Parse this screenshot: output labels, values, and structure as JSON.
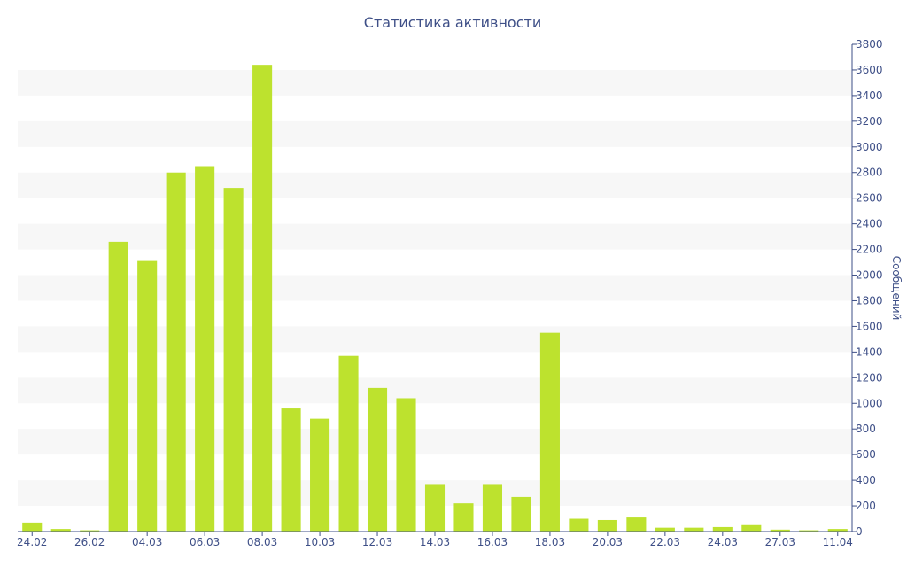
{
  "chart_data": {
    "type": "bar",
    "title": "Статистика активности",
    "ylabel": "Сообщений",
    "xlabel": "",
    "ylim": [
      0,
      3800
    ],
    "y_ticks": [
      0,
      200,
      400,
      600,
      800,
      1000,
      1200,
      1400,
      1600,
      1800,
      2000,
      2200,
      2400,
      2600,
      2800,
      3000,
      3200,
      3400,
      3600,
      3800
    ],
    "x_tick_labels": [
      "24.02",
      "26.02",
      "04.03",
      "06.03",
      "08.03",
      "10.03",
      "12.03",
      "14.03",
      "16.03",
      "18.03",
      "20.03",
      "22.03",
      "24.03",
      "27.03",
      "11.04"
    ],
    "x_tick_positions": [
      0,
      2,
      4,
      6,
      8,
      10,
      12,
      14,
      16,
      18,
      20,
      22,
      24,
      26,
      28
    ],
    "y_axis_position": "right",
    "grid": "alternating horizontal bands",
    "bar_color": "#bde22e",
    "band_color": "#f7f7f7",
    "text_color": "#3e4f87",
    "values": [
      70,
      20,
      10,
      2260,
      2110,
      2800,
      2850,
      2680,
      3640,
      960,
      880,
      1370,
      1120,
      1040,
      370,
      220,
      370,
      270,
      1550,
      100,
      90,
      110,
      30,
      30,
      35,
      50,
      15,
      10,
      20
    ]
  }
}
